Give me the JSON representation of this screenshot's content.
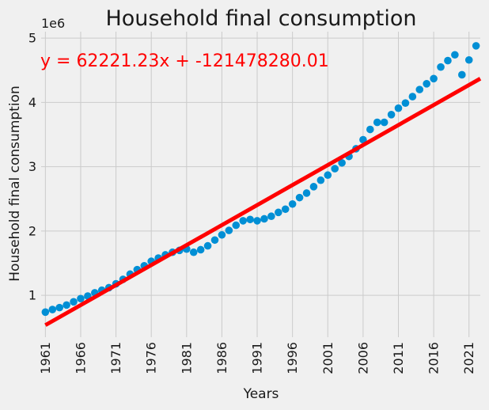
{
  "chart_data": {
    "type": "scatter",
    "title": "Household final consumption",
    "xlabel": "Years",
    "ylabel": "Household final consumption",
    "y_offset_label": "1e6",
    "xlim": [
      1960.4,
      2022.6
    ],
    "ylim": [
      0.35,
      5.1
    ],
    "y_scale_note": "values in millions (1e6)",
    "xticks": [
      1961,
      1966,
      1971,
      1976,
      1981,
      1986,
      1991,
      1996,
      2001,
      2006,
      2011,
      2016,
      2021
    ],
    "yticks": [
      1,
      2,
      3,
      4,
      5
    ],
    "grid": true,
    "point_color": "#008fd5",
    "line_color": "#ff0000",
    "equation": "y = 62221.23x + -121478280.01",
    "fit": {
      "slope": 62221.23,
      "intercept": -121478280.01
    },
    "x": [
      1961,
      1962,
      1963,
      1964,
      1965,
      1966,
      1967,
      1968,
      1969,
      1970,
      1971,
      1972,
      1973,
      1974,
      1975,
      1976,
      1977,
      1978,
      1979,
      1980,
      1981,
      1982,
      1983,
      1984,
      1985,
      1986,
      1987,
      1988,
      1989,
      1990,
      1991,
      1992,
      1993,
      1994,
      1995,
      1996,
      1997,
      1998,
      1999,
      2000,
      2001,
      2002,
      2003,
      2004,
      2005,
      2006,
      2007,
      2008,
      2009,
      2010,
      2011,
      2012,
      2013,
      2014,
      2015,
      2016,
      2017,
      2018,
      2019,
      2020,
      2021,
      2022
    ],
    "y": [
      0.74,
      0.78,
      0.81,
      0.85,
      0.9,
      0.95,
      0.99,
      1.04,
      1.08,
      1.12,
      1.18,
      1.25,
      1.33,
      1.4,
      1.46,
      1.53,
      1.58,
      1.63,
      1.67,
      1.7,
      1.72,
      1.67,
      1.71,
      1.77,
      1.86,
      1.94,
      2.01,
      2.09,
      2.16,
      2.18,
      2.16,
      2.19,
      2.23,
      2.29,
      2.34,
      2.42,
      2.52,
      2.59,
      2.69,
      2.79,
      2.87,
      2.97,
      3.06,
      3.16,
      3.28,
      3.42,
      3.58,
      3.69,
      3.69,
      3.81,
      3.91,
      3.99,
      4.09,
      4.2,
      4.29,
      4.37,
      4.55,
      4.65,
      4.74,
      4.43,
      4.66,
      4.88
    ]
  }
}
